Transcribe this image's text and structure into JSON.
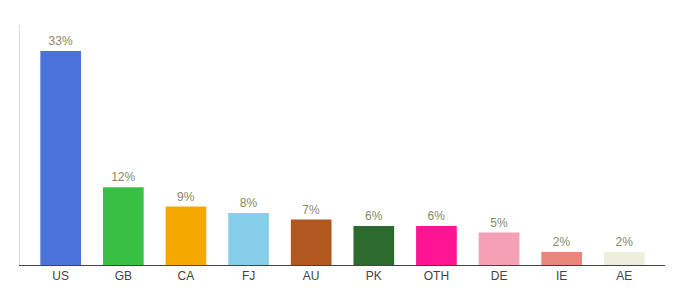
{
  "chart_data": {
    "type": "bar",
    "categories": [
      "US",
      "GB",
      "CA",
      "FJ",
      "AU",
      "PK",
      "OTH",
      "DE",
      "IE",
      "AE"
    ],
    "values": [
      33,
      12,
      9,
      8,
      7,
      6,
      6,
      5,
      2,
      2
    ],
    "value_labels": [
      "33%",
      "12%",
      "9%",
      "8%",
      "7%",
      "6%",
      "6%",
      "5%",
      "2%",
      "2%"
    ],
    "colors": [
      "#4a72d9",
      "#3abf45",
      "#f5a800",
      "#87ceeb",
      "#b05820",
      "#2d6a2d",
      "#ff1493",
      "#f4a0b5",
      "#e8867a",
      "#eeeedd"
    ],
    "ylim": [
      0,
      37
    ],
    "yticks": [],
    "grid": false,
    "data_labels": true,
    "tick_labels": "x"
  }
}
